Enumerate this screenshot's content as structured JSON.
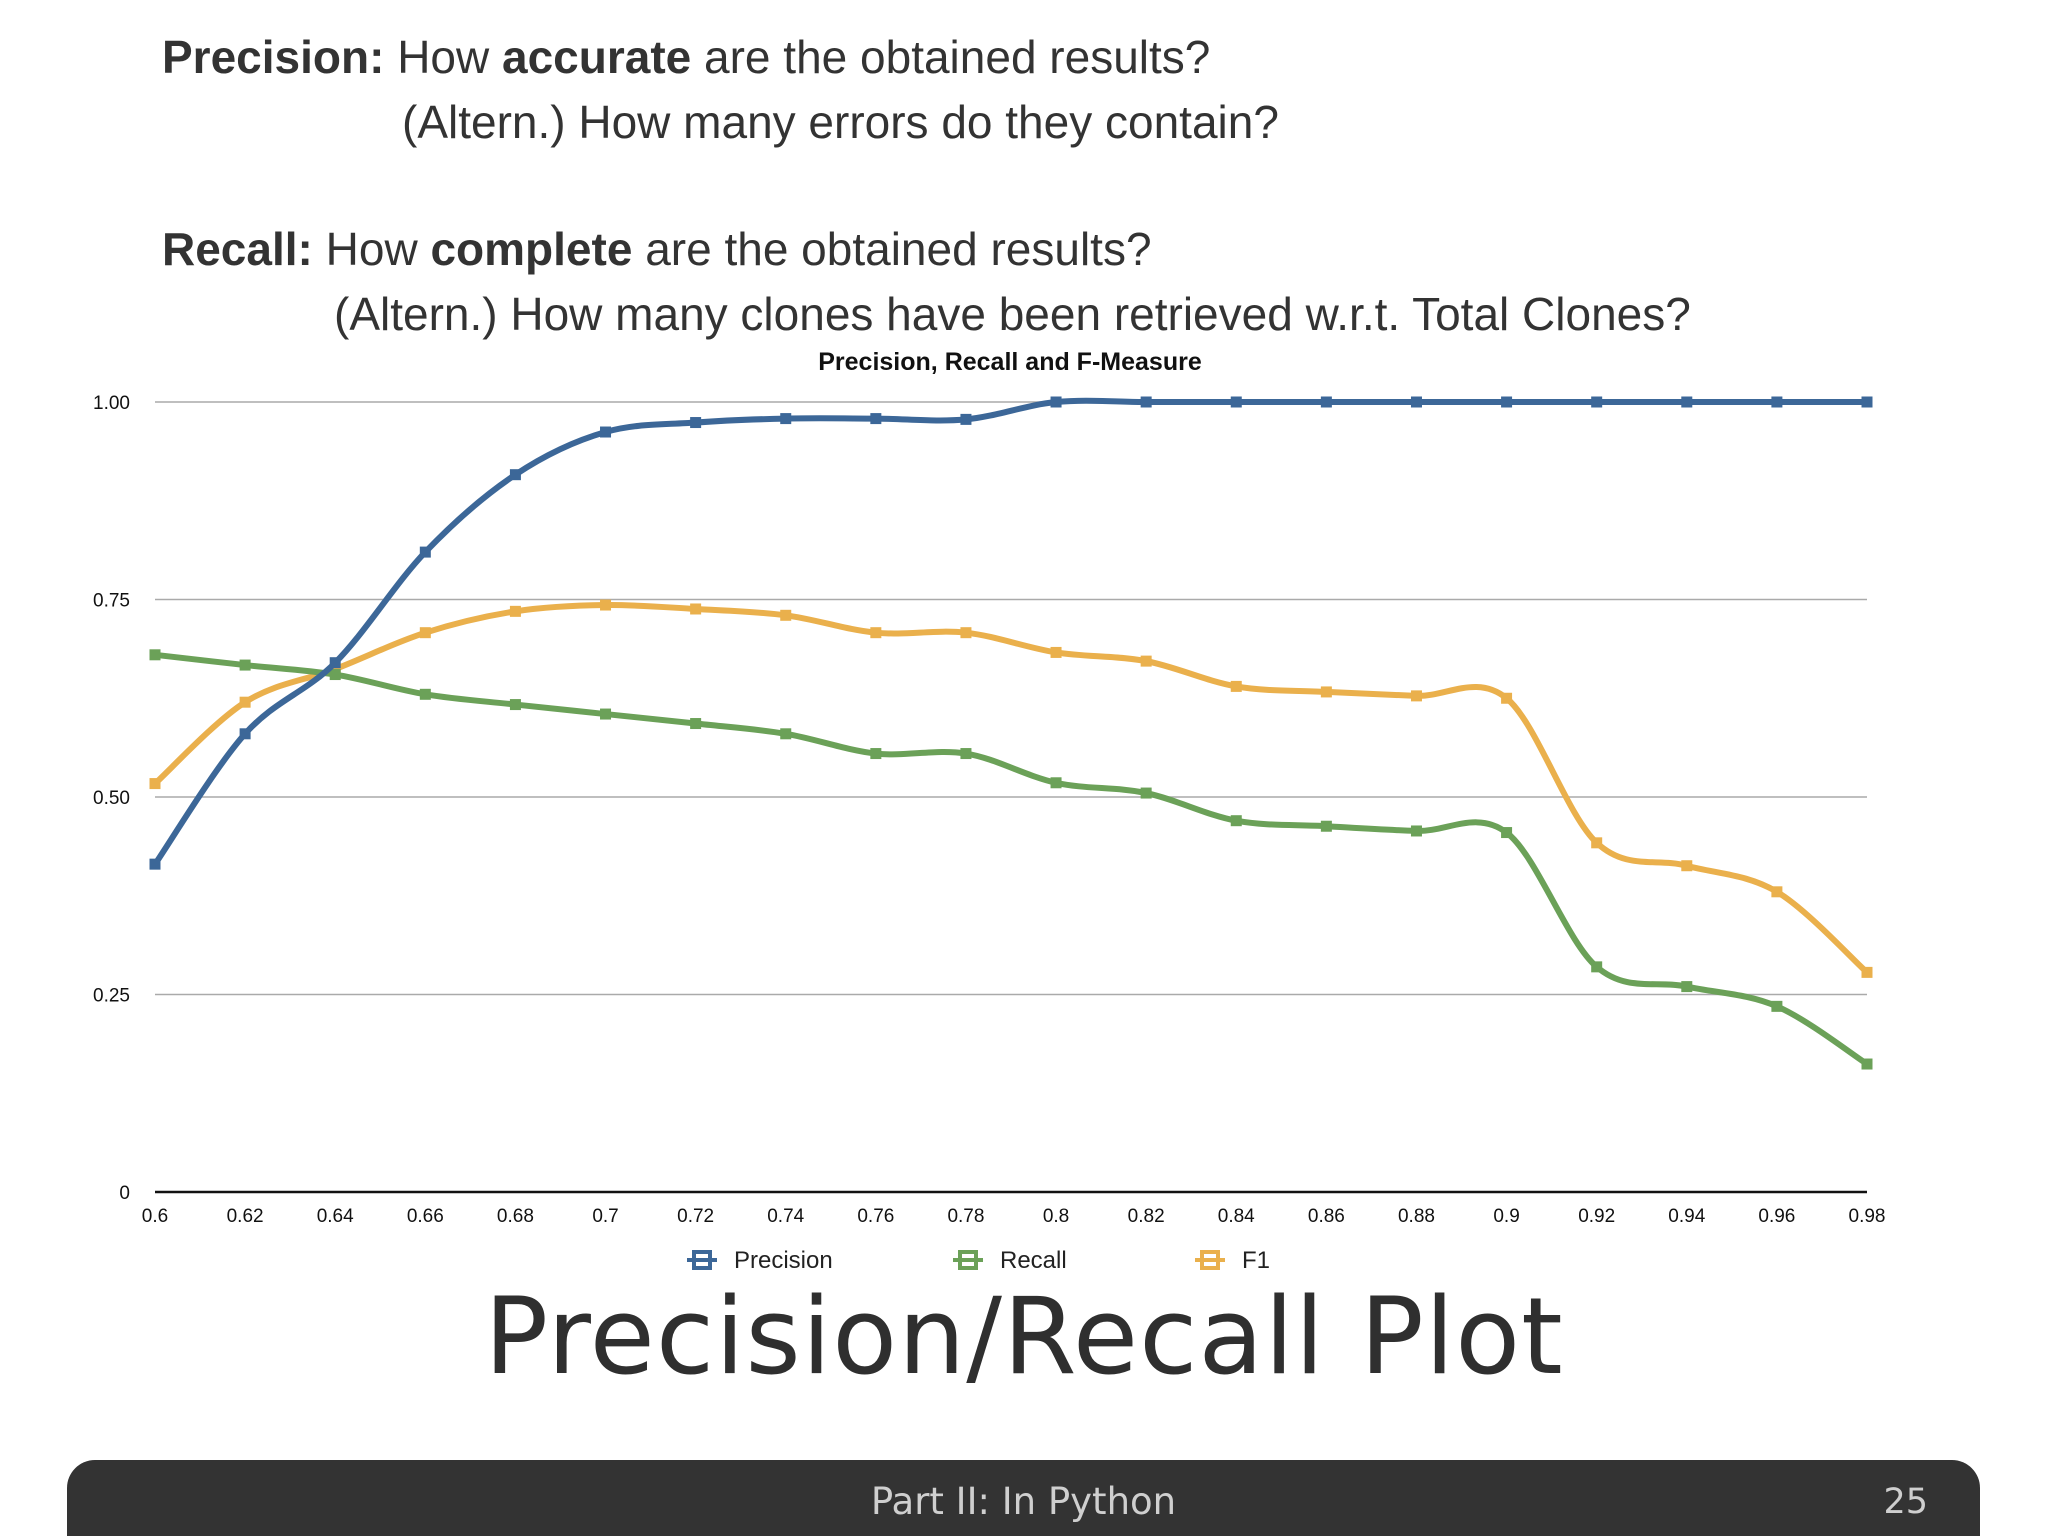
{
  "header": {
    "precision_label": "Precision:",
    "precision_pre": "How",
    "precision_bold": "accurate",
    "precision_post": "are the obtained results?",
    "precision_alt": "(Altern.) How many errors do they contain?",
    "recall_label": "Recall:",
    "recall_pre": "How",
    "recall_bold": "complete",
    "recall_post": "are the obtained results?",
    "recall_alt": "(Altern.) How many clones have been retrieved w.r.t. Total Clones?"
  },
  "slide_title": "Precision/Recall Plot",
  "footer": {
    "text": "Part II: In Python",
    "page_number": "25"
  },
  "chart_data": {
    "type": "line",
    "title": "Precision, Recall and F-Measure",
    "xlabel": "",
    "ylabel": "",
    "x": [
      "0.6",
      "0.62",
      "0.64",
      "0.66",
      "0.68",
      "0.7",
      "0.72",
      "0.74",
      "0.76",
      "0.78",
      "0.8",
      "0.82",
      "0.84",
      "0.86",
      "0.88",
      "0.9",
      "0.92",
      "0.94",
      "0.96",
      "0.98"
    ],
    "yticks": [
      "0",
      "0.25",
      "0.50",
      "0.75",
      "1.00"
    ],
    "ylim": [
      0,
      1
    ],
    "grid": true,
    "legend_position": "bottom",
    "series": [
      {
        "name": "Precision",
        "color": "#3c6798",
        "values": [
          0.415,
          0.58,
          0.67,
          0.81,
          0.908,
          0.962,
          0.974,
          0.979,
          0.979,
          0.978,
          1.0,
          1.0,
          1.0,
          1.0,
          1.0,
          1.0,
          1.0,
          1.0,
          1.0,
          1.0
        ]
      },
      {
        "name": "Recall",
        "color": "#6ba158",
        "values": [
          0.68,
          0.667,
          0.655,
          0.63,
          0.617,
          0.605,
          0.593,
          0.58,
          0.555,
          0.555,
          0.518,
          0.505,
          0.47,
          0.463,
          0.457,
          0.455,
          0.285,
          0.26,
          0.235,
          0.162
        ]
      },
      {
        "name": "F1",
        "color": "#eab04c",
        "values": [
          0.517,
          0.62,
          0.662,
          0.708,
          0.735,
          0.743,
          0.738,
          0.73,
          0.708,
          0.708,
          0.683,
          0.672,
          0.64,
          0.633,
          0.628,
          0.625,
          0.442,
          0.413,
          0.38,
          0.278
        ]
      }
    ]
  }
}
